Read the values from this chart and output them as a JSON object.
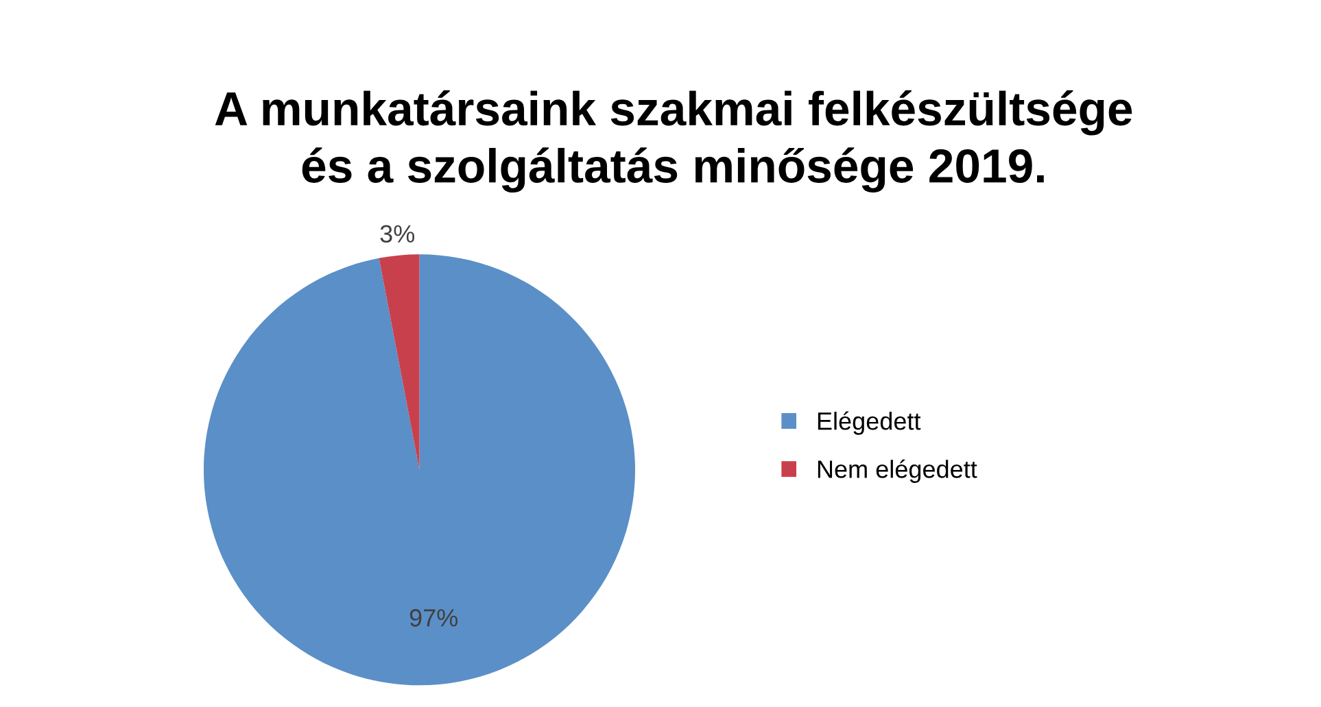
{
  "chart_data": {
    "type": "pie",
    "title": "A munkatársaink szakmai felkészültsége\nés a szolgáltatás minősége 2019.",
    "categories": [
      "Elégedett",
      "Nem elégedett"
    ],
    "values": [
      97,
      3
    ],
    "colors": [
      "#5b8fc7",
      "#c8404c"
    ],
    "value_labels": [
      "97%",
      "3%"
    ],
    "legend": "right"
  }
}
